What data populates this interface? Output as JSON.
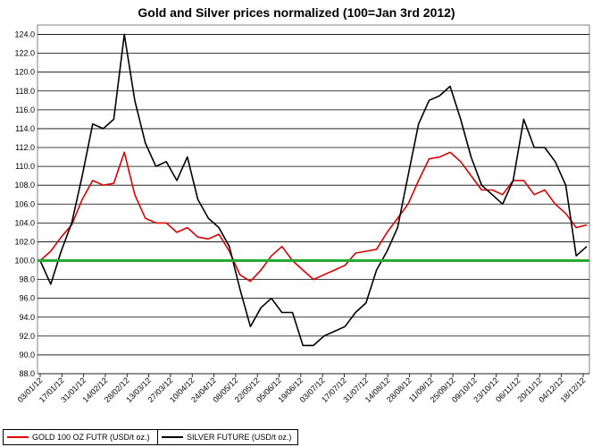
{
  "chart_data": {
    "type": "line",
    "title": "Gold and Silver prices normalized (100=Jan 3rd 2012)",
    "xlabel": "",
    "ylabel": "",
    "ylim": [
      88.0,
      125.0
    ],
    "y_ticks": [
      "88.0",
      "90.0",
      "92.0",
      "94.0",
      "96.0",
      "98.0",
      "100.0",
      "102.0",
      "104.0",
      "106.0",
      "108.0",
      "110.0",
      "112.0",
      "114.0",
      "116.0",
      "118.0",
      "120.0",
      "122.0",
      "124.0"
    ],
    "x_ticks": [
      "03/01/12",
      "17/01/12",
      "31/01/12",
      "14/02/12",
      "28/02/12",
      "13/03/12",
      "27/03/12",
      "10/04/12",
      "24/04/12",
      "08/05/12",
      "22/05/12",
      "05/06/12",
      "19/06/12",
      "03/07/12",
      "17/07/12",
      "31/07/12",
      "14/08/12",
      "28/08/12",
      "11/09/12",
      "25/09/12",
      "09/10/12",
      "23/10/12",
      "06/11/12",
      "20/11/12",
      "04/12/12",
      "18/12/12"
    ],
    "baseline": {
      "value": 100.0,
      "color": "#22aa33"
    },
    "grid": true,
    "legend_position": "bottom-left",
    "x": [
      "03/01/12",
      "10/01/12",
      "17/01/12",
      "24/01/12",
      "31/01/12",
      "07/02/12",
      "14/02/12",
      "21/02/12",
      "28/02/12",
      "06/03/12",
      "13/03/12",
      "20/03/12",
      "27/03/12",
      "03/04/12",
      "10/04/12",
      "17/04/12",
      "24/04/12",
      "01/05/12",
      "08/05/12",
      "15/05/12",
      "22/05/12",
      "29/05/12",
      "05/06/12",
      "12/06/12",
      "19/06/12",
      "26/06/12",
      "03/07/12",
      "10/07/12",
      "17/07/12",
      "24/07/12",
      "31/07/12",
      "07/08/12",
      "14/08/12",
      "21/08/12",
      "28/08/12",
      "04/09/12",
      "11/09/12",
      "18/09/12",
      "25/09/12",
      "02/10/12",
      "09/10/12",
      "16/10/12",
      "23/10/12",
      "30/10/12",
      "06/11/12",
      "13/11/12",
      "20/11/12",
      "27/11/12",
      "04/12/12",
      "11/12/12",
      "18/12/12",
      "25/12/12",
      "31/12/12"
    ],
    "series": [
      {
        "name": "GOLD 100 OZ FUTR (USD/t oz.)",
        "color": "#dd0000",
        "values": [
          100.0,
          101.0,
          102.5,
          103.8,
          106.5,
          108.5,
          108.0,
          108.2,
          111.5,
          107.0,
          104.5,
          104.0,
          104.0,
          103.0,
          103.5,
          102.5,
          102.3,
          102.8,
          101.0,
          98.5,
          97.8,
          99.0,
          100.5,
          101.5,
          100.0,
          99.0,
          98.0,
          98.5,
          99.0,
          99.5,
          100.8,
          101.0,
          101.2,
          103.0,
          104.5,
          106.0,
          108.5,
          110.8,
          111.0,
          111.5,
          110.5,
          109.0,
          107.5,
          107.5,
          107.0,
          108.5,
          108.5,
          107.0,
          107.5,
          106.0,
          105.0,
          103.5,
          103.8
        ]
      },
      {
        "name": "SILVER FUTURE (USD/t oz.)",
        "color": "#000000",
        "values": [
          100.0,
          97.5,
          101.0,
          104.0,
          109.0,
          114.5,
          114.0,
          115.0,
          124.0,
          117.0,
          112.5,
          110.0,
          110.5,
          108.5,
          111.0,
          106.5,
          104.5,
          103.5,
          101.5,
          97.0,
          93.0,
          95.0,
          96.0,
          94.5,
          94.5,
          91.0,
          91.0,
          92.0,
          92.5,
          93.0,
          94.5,
          95.5,
          99.0,
          101.0,
          103.5,
          109.0,
          114.5,
          117.0,
          117.5,
          118.5,
          115.0,
          111.0,
          108.0,
          107.0,
          106.0,
          108.5,
          115.0,
          112.0,
          112.0,
          110.5,
          108.0,
          100.5,
          101.5
        ]
      }
    ]
  }
}
